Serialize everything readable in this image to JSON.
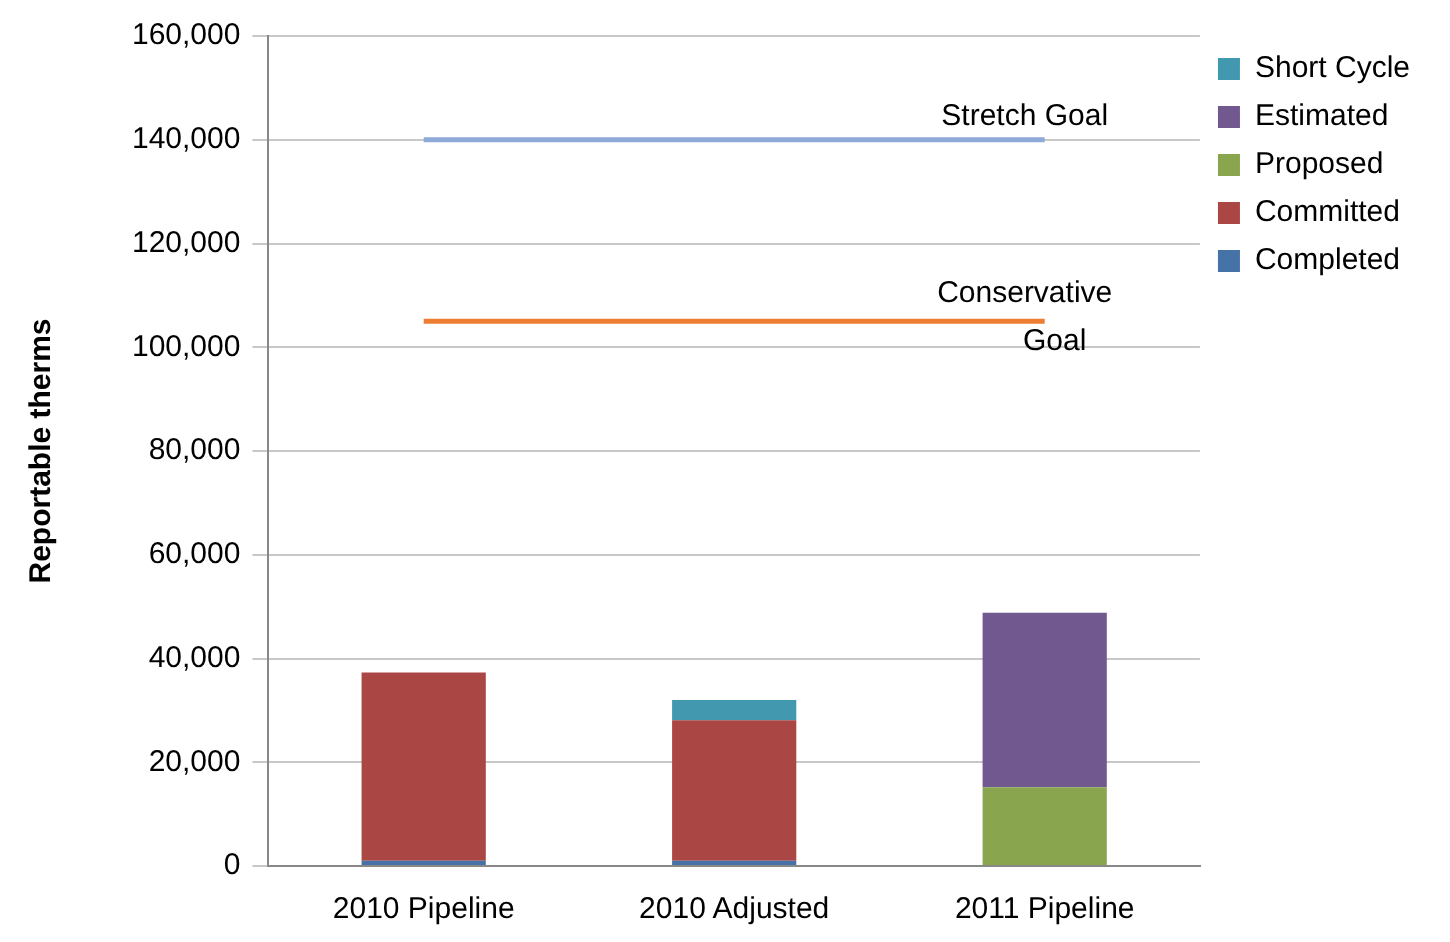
{
  "chart_data": {
    "type": "bar",
    "stacked": true,
    "ylabel": "Reportable therms",
    "categories": [
      "2010 Pipeline",
      "2010 Adjusted",
      "2011 Pipeline"
    ],
    "series": [
      {
        "name": "Completed",
        "color": "#4572a7",
        "values": [
          1000,
          1000,
          null
        ]
      },
      {
        "name": "Committed",
        "color": "#aa4643",
        "values": [
          36300,
          27100,
          null
        ]
      },
      {
        "name": "Proposed",
        "color": "#89a54e",
        "values": [
          null,
          null,
          15200
        ]
      },
      {
        "name": "Estimated",
        "color": "#71588f",
        "values": [
          null,
          null,
          33600
        ]
      },
      {
        "name": "Short Cycle",
        "color": "#4198af",
        "values": [
          null,
          3900,
          null
        ]
      },
      {
        "name": "Stretch Goal",
        "type": "line",
        "color": "#8eaadb",
        "values": [
          140000,
          140000,
          140000
        ]
      },
      {
        "name": "Conservative Goal",
        "type": "line",
        "color": "#ed7d31",
        "values": [
          105000,
          105000,
          105000
        ]
      }
    ],
    "ylim": [
      0,
      160000
    ],
    "yticks": [
      0,
      {
        "value": 20000,
        "label": "20,000"
      },
      {
        "value": 40000,
        "label": "40,000"
      },
      {
        "value": 60000,
        "label": "60,000"
      },
      {
        "value": 80000,
        "label": "80,000"
      },
      {
        "value": 100000,
        "label": "100,000"
      },
      {
        "value": 120000,
        "label": "120,000"
      },
      {
        "value": 140000,
        "label": "140,000"
      },
      {
        "value": 160000,
        "label": "160,000"
      }
    ],
    "grid": "y",
    "legend": "right",
    "marker": "none"
  }
}
